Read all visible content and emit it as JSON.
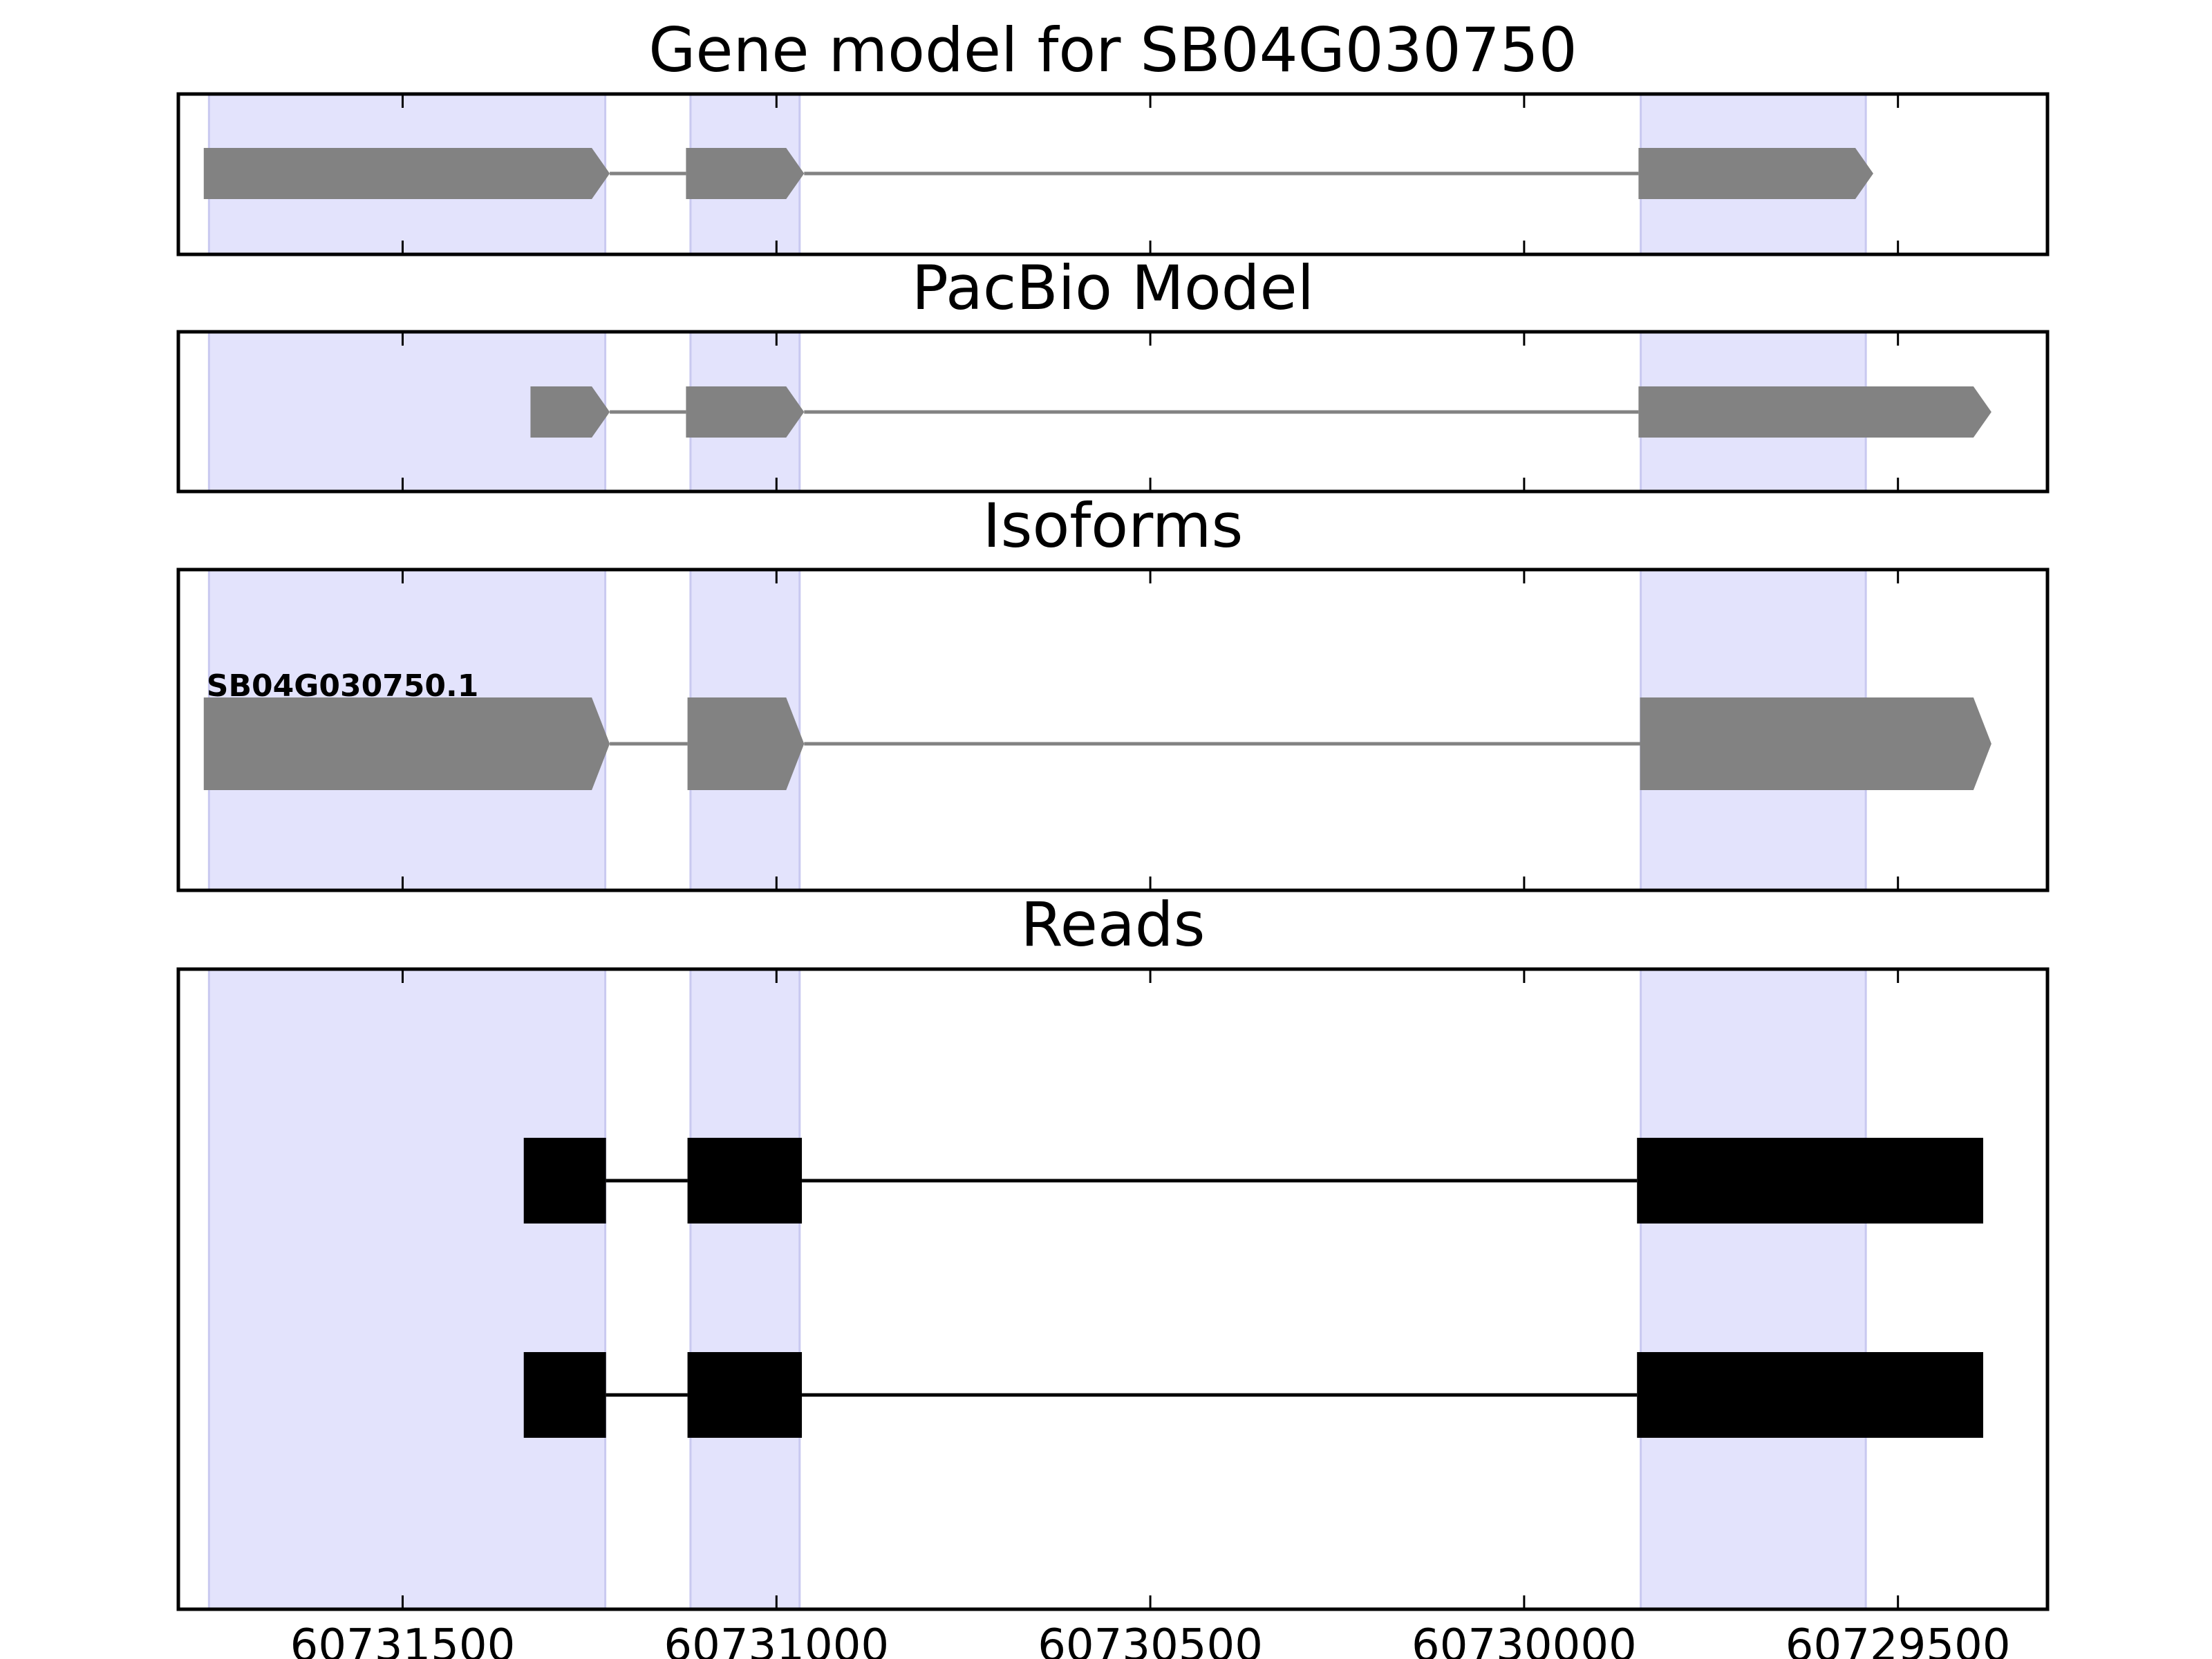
{
  "chart_data": [
    {
      "type": "gene-model",
      "title": "Gene model for SB04G030750",
      "xlim": [
        60731800,
        60729300
      ],
      "highlight_regions": [
        [
          60731759,
          60731229
        ],
        [
          60731115,
          60730969
        ],
        [
          60729844,
          60729543
        ]
      ],
      "highlight_color": "#e3e3fc",
      "feature_color": "#828282",
      "features": [
        {
          "label": "",
          "exons": [
            [
              60731766,
              60731223
            ],
            [
              60731121,
              60730963
            ],
            [
              60729847,
              60729533
            ]
          ]
        }
      ]
    },
    {
      "type": "gene-model",
      "title": "PacBio Model",
      "xlim": [
        60731800,
        60729300
      ],
      "highlight_regions": [
        [
          60731759,
          60731229
        ],
        [
          60731115,
          60730969
        ],
        [
          60729844,
          60729543
        ]
      ],
      "highlight_color": "#e3e3fc",
      "feature_color": "#828282",
      "features": [
        {
          "label": "",
          "exons": [
            [
              60731329,
              60731223
            ],
            [
              60731121,
              60730963
            ],
            [
              60729847,
              60729375
            ]
          ]
        }
      ]
    },
    {
      "type": "gene-model",
      "title": "Isoforms",
      "xlim": [
        60731800,
        60729300
      ],
      "highlight_regions": [
        [
          60731759,
          60731229
        ],
        [
          60731115,
          60730969
        ],
        [
          60729844,
          60729543
        ]
      ],
      "highlight_color": "#e3e3fc",
      "feature_color": "#828282",
      "features": [
        {
          "label": "SB04G030750.1",
          "exons": [
            [
              60731766,
              60731223
            ],
            [
              60731119,
              60730963
            ],
            [
              60729845,
              60729375
            ]
          ]
        }
      ]
    },
    {
      "type": "reads",
      "title": "Reads",
      "xlim": [
        60731800,
        60729300
      ],
      "xticks": [
        60731500,
        60731000,
        60730500,
        60730000,
        60729500
      ],
      "xtick_labels": [
        "60731500",
        "60731000",
        "60730500",
        "60730000",
        "60729500"
      ],
      "highlight_regions": [
        [
          60731759,
          60731229
        ],
        [
          60731115,
          60730969
        ],
        [
          60729844,
          60729543
        ]
      ],
      "highlight_color": "#e3e3fc",
      "feature_color": "#000000",
      "reads": [
        {
          "exons": [
            [
              60731338,
              60731228
            ],
            [
              60731119,
              60730966
            ],
            [
              60729849,
              60729386
            ]
          ]
        },
        {
          "exons": [
            [
              60731338,
              60731228
            ],
            [
              60731119,
              60730966
            ],
            [
              60729849,
              60729386
            ]
          ]
        }
      ]
    }
  ]
}
